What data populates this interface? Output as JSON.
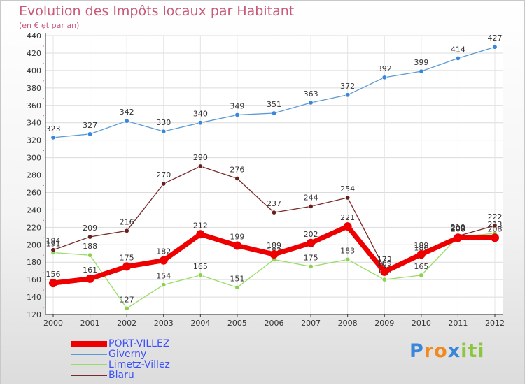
{
  "chart_data": {
    "type": "line",
    "title": "Evolution des Impôts locaux par Habitant",
    "subtitle": "(en € et par an)",
    "xlabel": "",
    "ylabel": "",
    "x": [
      "2000",
      "2001",
      "2002",
      "2003",
      "2004",
      "2005",
      "2006",
      "2007",
      "2008",
      "2009",
      "2010",
      "2011",
      "2012"
    ],
    "ylim": [
      120,
      440
    ],
    "yticks": [
      120,
      140,
      160,
      180,
      200,
      220,
      240,
      260,
      280,
      300,
      320,
      340,
      360,
      380,
      400,
      420,
      440
    ],
    "grid": true,
    "legend_position": "bottom-left",
    "series": [
      {
        "name": "PORT-VILLEZ",
        "color": "#ee0000",
        "values": [
          156,
          161,
          175,
          182,
          212,
          199,
          189,
          202,
          221,
          169,
          189,
          208,
          208
        ]
      },
      {
        "name": "Giverny",
        "color": "#5b9bd5",
        "values": [
          323,
          327,
          342,
          330,
          340,
          349,
          351,
          363,
          372,
          392,
          399,
          414,
          427
        ]
      },
      {
        "name": "Limetz-Villez",
        "color": "#99dd66",
        "values": [
          191,
          188,
          127,
          154,
          165,
          151,
          183,
          175,
          183,
          160,
          165,
          209,
          213
        ]
      },
      {
        "name": "Blaru",
        "color": "#7a2a2a",
        "values": [
          194,
          209,
          216,
          270,
          290,
          276,
          237,
          244,
          254,
          173,
          186,
          210,
          222
        ]
      }
    ]
  },
  "logo": {
    "text": "Proxiti",
    "letters": [
      "P",
      "r",
      "o",
      "x",
      "i",
      "t",
      "i"
    ],
    "colors": [
      "#3a86d8",
      "#f08a20",
      "#f08a20",
      "#3a86d8",
      "#8cc63f",
      "#8cc63f",
      "#8cc63f"
    ]
  }
}
